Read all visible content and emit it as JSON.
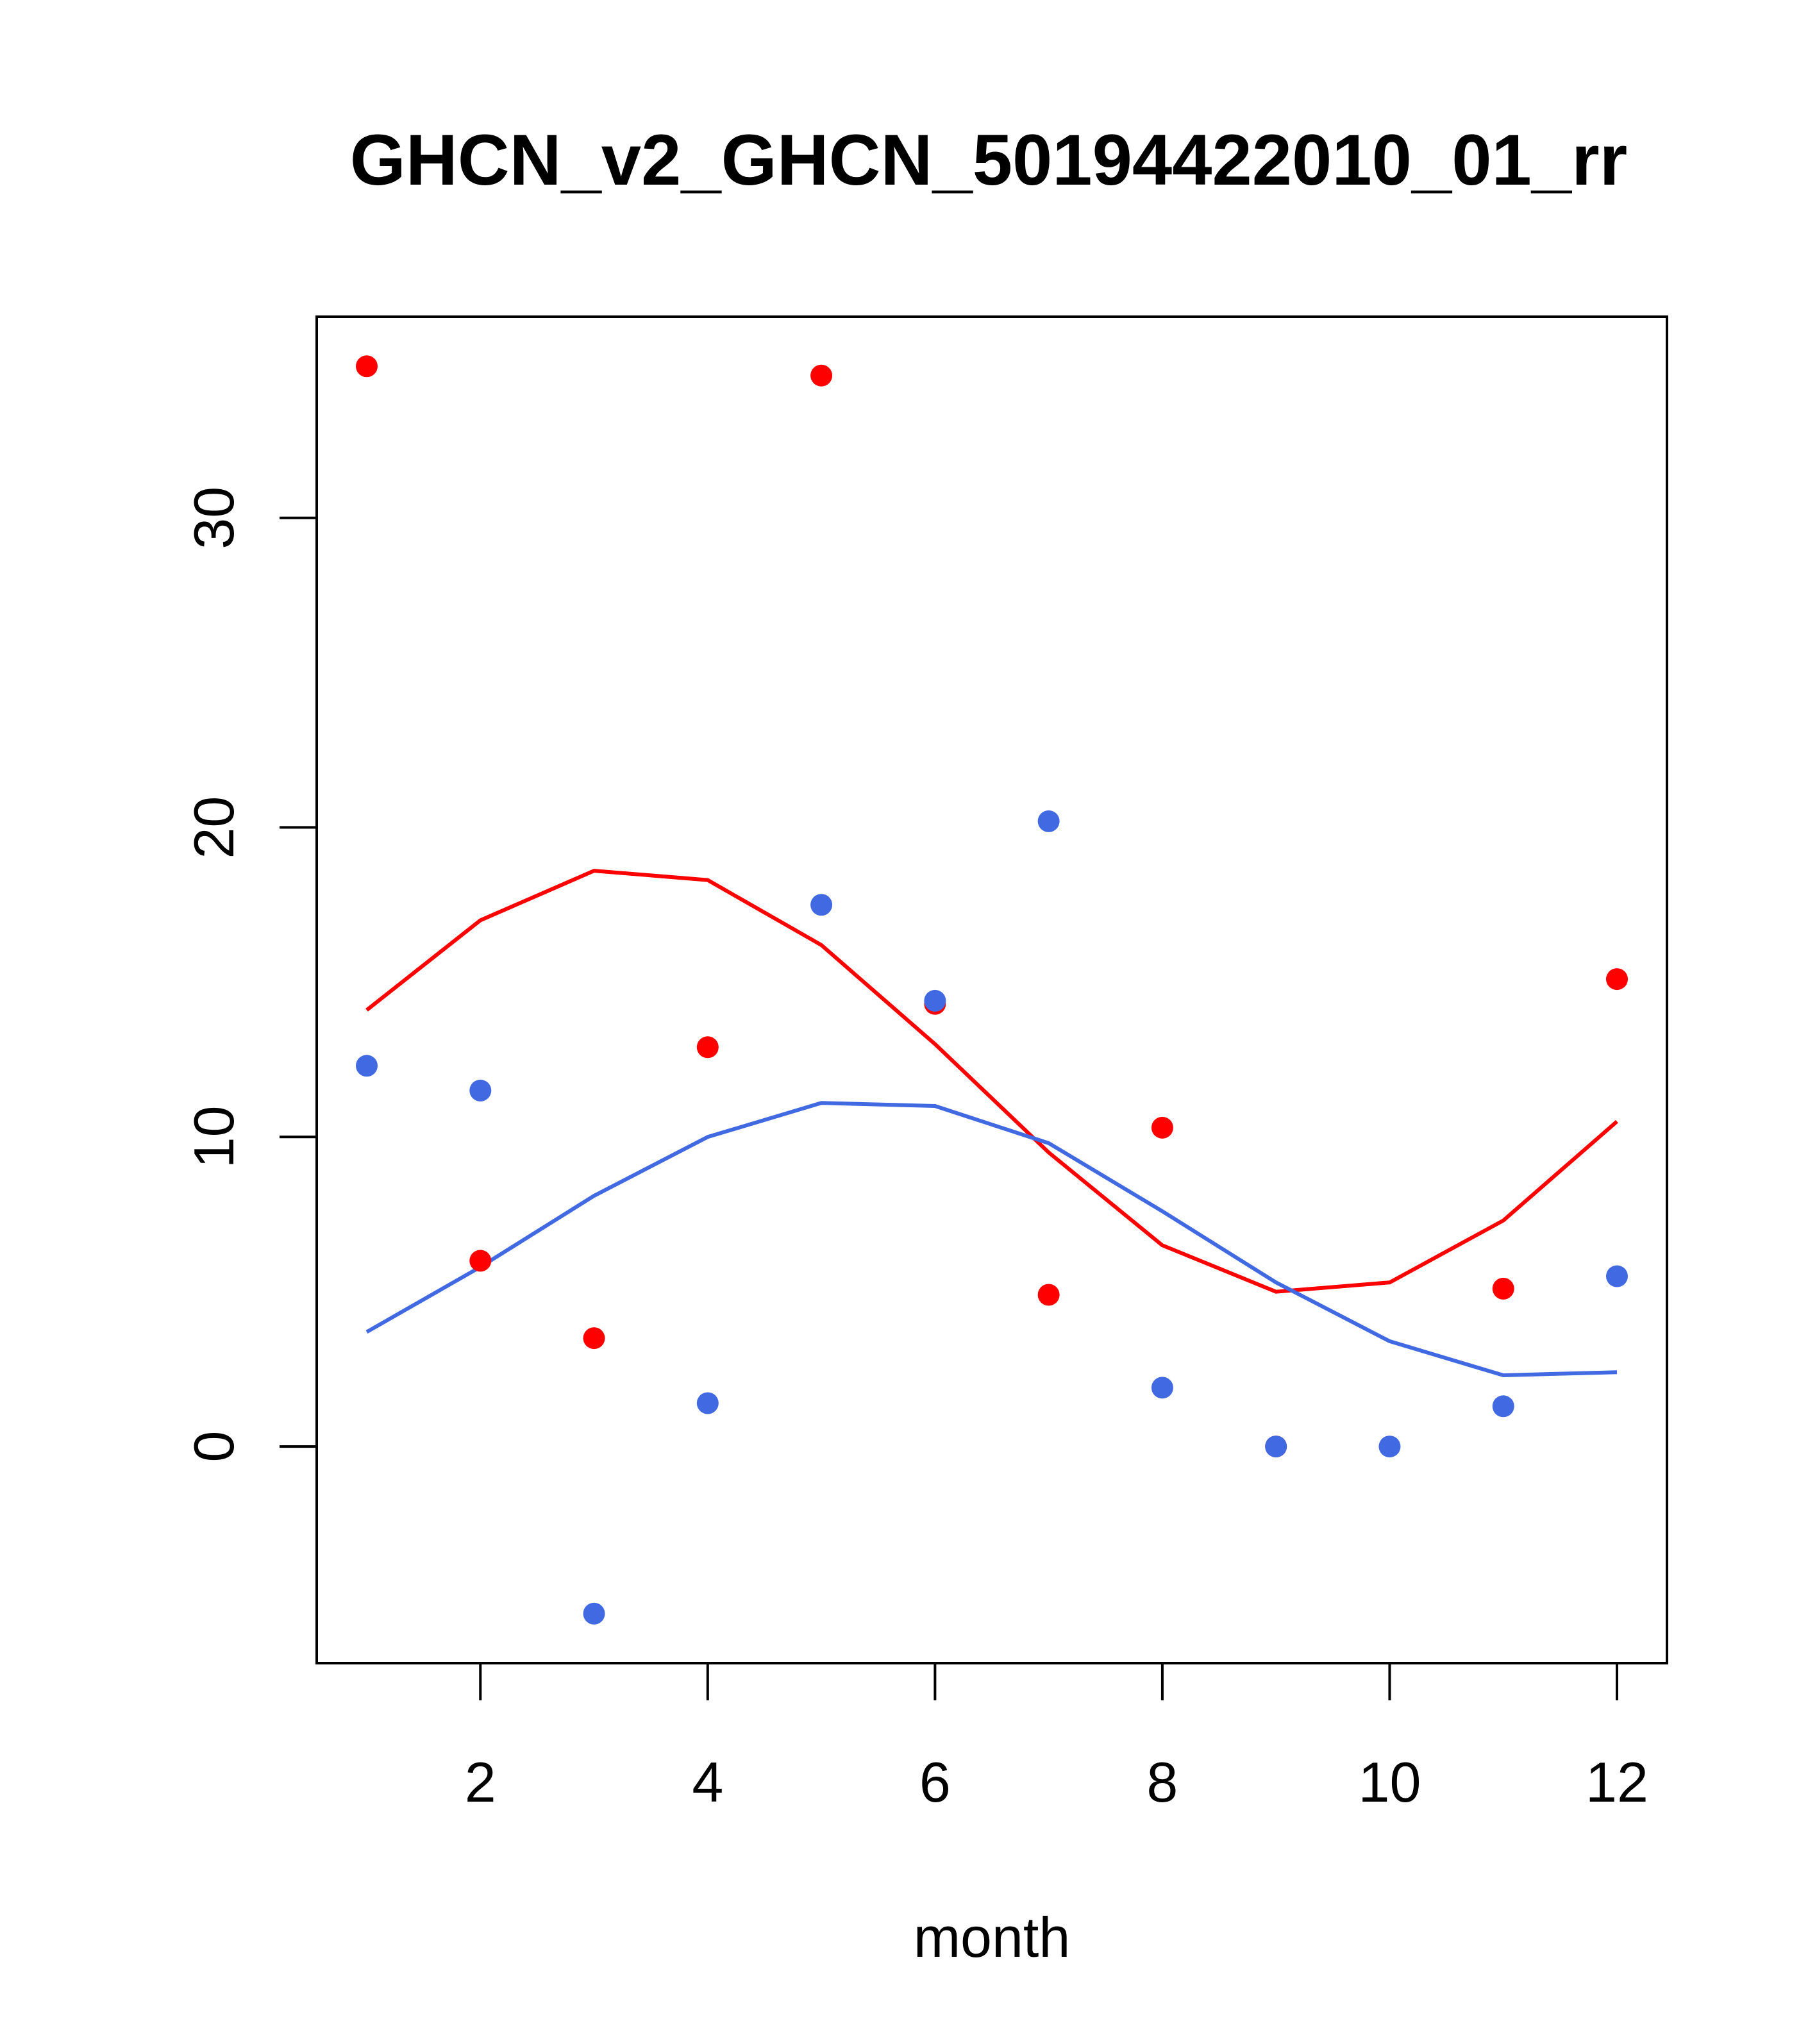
{
  "chart_data": {
    "type": "scatter",
    "title": "GHCN_v2_GHCN_50194422010_01_rr",
    "xlabel": "month",
    "ylabel": "",
    "xlim": [
      0.56,
      12.44
    ],
    "ylim": [
      -7.0,
      36.5
    ],
    "xticks": [
      2,
      4,
      6,
      8,
      10,
      12
    ],
    "yticks": [
      0,
      10,
      20,
      30
    ],
    "grid": false,
    "series": [
      {
        "color": "#FF0000",
        "points": [
          {
            "x": 1,
            "y": 34.9
          },
          {
            "x": 2,
            "y": 6.0
          },
          {
            "x": 3,
            "y": 3.5
          },
          {
            "x": 4,
            "y": 12.9
          },
          {
            "x": 5,
            "y": 34.6
          },
          {
            "x": 6,
            "y": 14.3
          },
          {
            "x": 7,
            "y": 4.9
          },
          {
            "x": 8,
            "y": 10.3
          },
          {
            "x": 9,
            "y": 0.0
          },
          {
            "x": 10,
            "y": null
          },
          {
            "x": 11,
            "y": 5.1
          },
          {
            "x": 12,
            "y": 15.1
          }
        ],
        "line": [
          {
            "x": 1,
            "y": 14.1
          },
          {
            "x": 2,
            "y": 17.0
          },
          {
            "x": 3,
            "y": 18.6
          },
          {
            "x": 4,
            "y": 18.3
          },
          {
            "x": 5,
            "y": 16.2
          },
          {
            "x": 6,
            "y": 13.0
          },
          {
            "x": 7,
            "y": 9.5
          },
          {
            "x": 8,
            "y": 6.5
          },
          {
            "x": 9,
            "y": 5.0
          },
          {
            "x": 10,
            "y": 5.3
          },
          {
            "x": 11,
            "y": 7.3
          },
          {
            "x": 12,
            "y": 10.5
          }
        ]
      },
      {
        "color": "#4169E1",
        "points": [
          {
            "x": 1,
            "y": 12.3
          },
          {
            "x": 2,
            "y": 11.5
          },
          {
            "x": 3,
            "y": -5.4
          },
          {
            "x": 4,
            "y": 1.4
          },
          {
            "x": 5,
            "y": 17.5
          },
          {
            "x": 6,
            "y": 14.4
          },
          {
            "x": 7,
            "y": 20.2
          },
          {
            "x": 8,
            "y": 1.9
          },
          {
            "x": 9,
            "y": 0.0
          },
          {
            "x": 10,
            "y": 0.0
          },
          {
            "x": 11,
            "y": 1.3
          },
          {
            "x": 12,
            "y": 5.5
          }
        ],
        "line": [
          {
            "x": 1,
            "y": 3.7
          },
          {
            "x": 2,
            "y": 5.8
          },
          {
            "x": 3,
            "y": 8.1
          },
          {
            "x": 4,
            "y": 10.0
          },
          {
            "x": 5,
            "y": 11.1
          },
          {
            "x": 6,
            "y": 11.0
          },
          {
            "x": 7,
            "y": 9.8
          },
          {
            "x": 8,
            "y": 7.6
          },
          {
            "x": 9,
            "y": 5.3
          },
          {
            "x": 10,
            "y": 3.4
          },
          {
            "x": 11,
            "y": 2.3
          },
          {
            "x": 12,
            "y": 2.4
          }
        ]
      }
    ]
  }
}
